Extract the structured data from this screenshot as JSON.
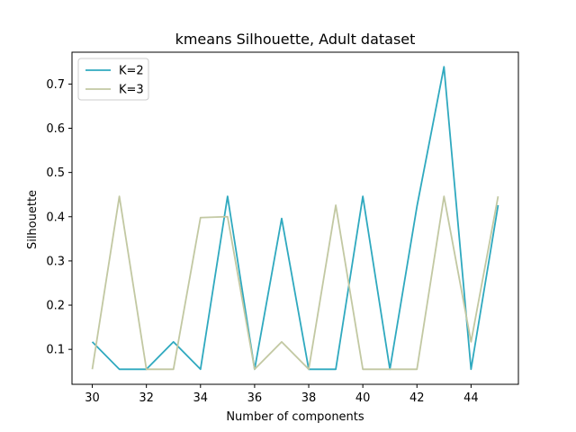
{
  "chart_data": {
    "type": "line",
    "title": "kmeans Silhouette, Adult dataset",
    "xlabel": "Number of components",
    "ylabel": "Silhouette",
    "x": [
      30,
      31,
      32,
      33,
      34,
      35,
      36,
      37,
      38,
      39,
      40,
      41,
      42,
      43,
      44,
      45
    ],
    "xlim": [
      29.25,
      45.75
    ],
    "ylim": [
      0.021,
      0.772
    ],
    "xticks": [
      "30",
      "32",
      "34",
      "36",
      "38",
      "40",
      "42",
      "44"
    ],
    "yticks": [
      "0.1",
      "0.2",
      "0.3",
      "0.4",
      "0.5",
      "0.6",
      "0.7"
    ],
    "grid": false,
    "legend_position": "top-left",
    "series": [
      {
        "name": "K=2",
        "color": "#2fa9bf",
        "values": [
          0.117,
          0.055,
          0.055,
          0.117,
          0.055,
          0.446,
          0.055,
          0.396,
          0.055,
          0.055,
          0.446,
          0.055,
          0.423,
          0.739,
          0.055,
          0.426
        ]
      },
      {
        "name": "K=3",
        "color": "#c2c8a2",
        "values": [
          0.055,
          0.446,
          0.055,
          0.055,
          0.398,
          0.4,
          0.055,
          0.117,
          0.055,
          0.426,
          0.055,
          0.055,
          0.055,
          0.446,
          0.117,
          0.446
        ]
      }
    ]
  }
}
